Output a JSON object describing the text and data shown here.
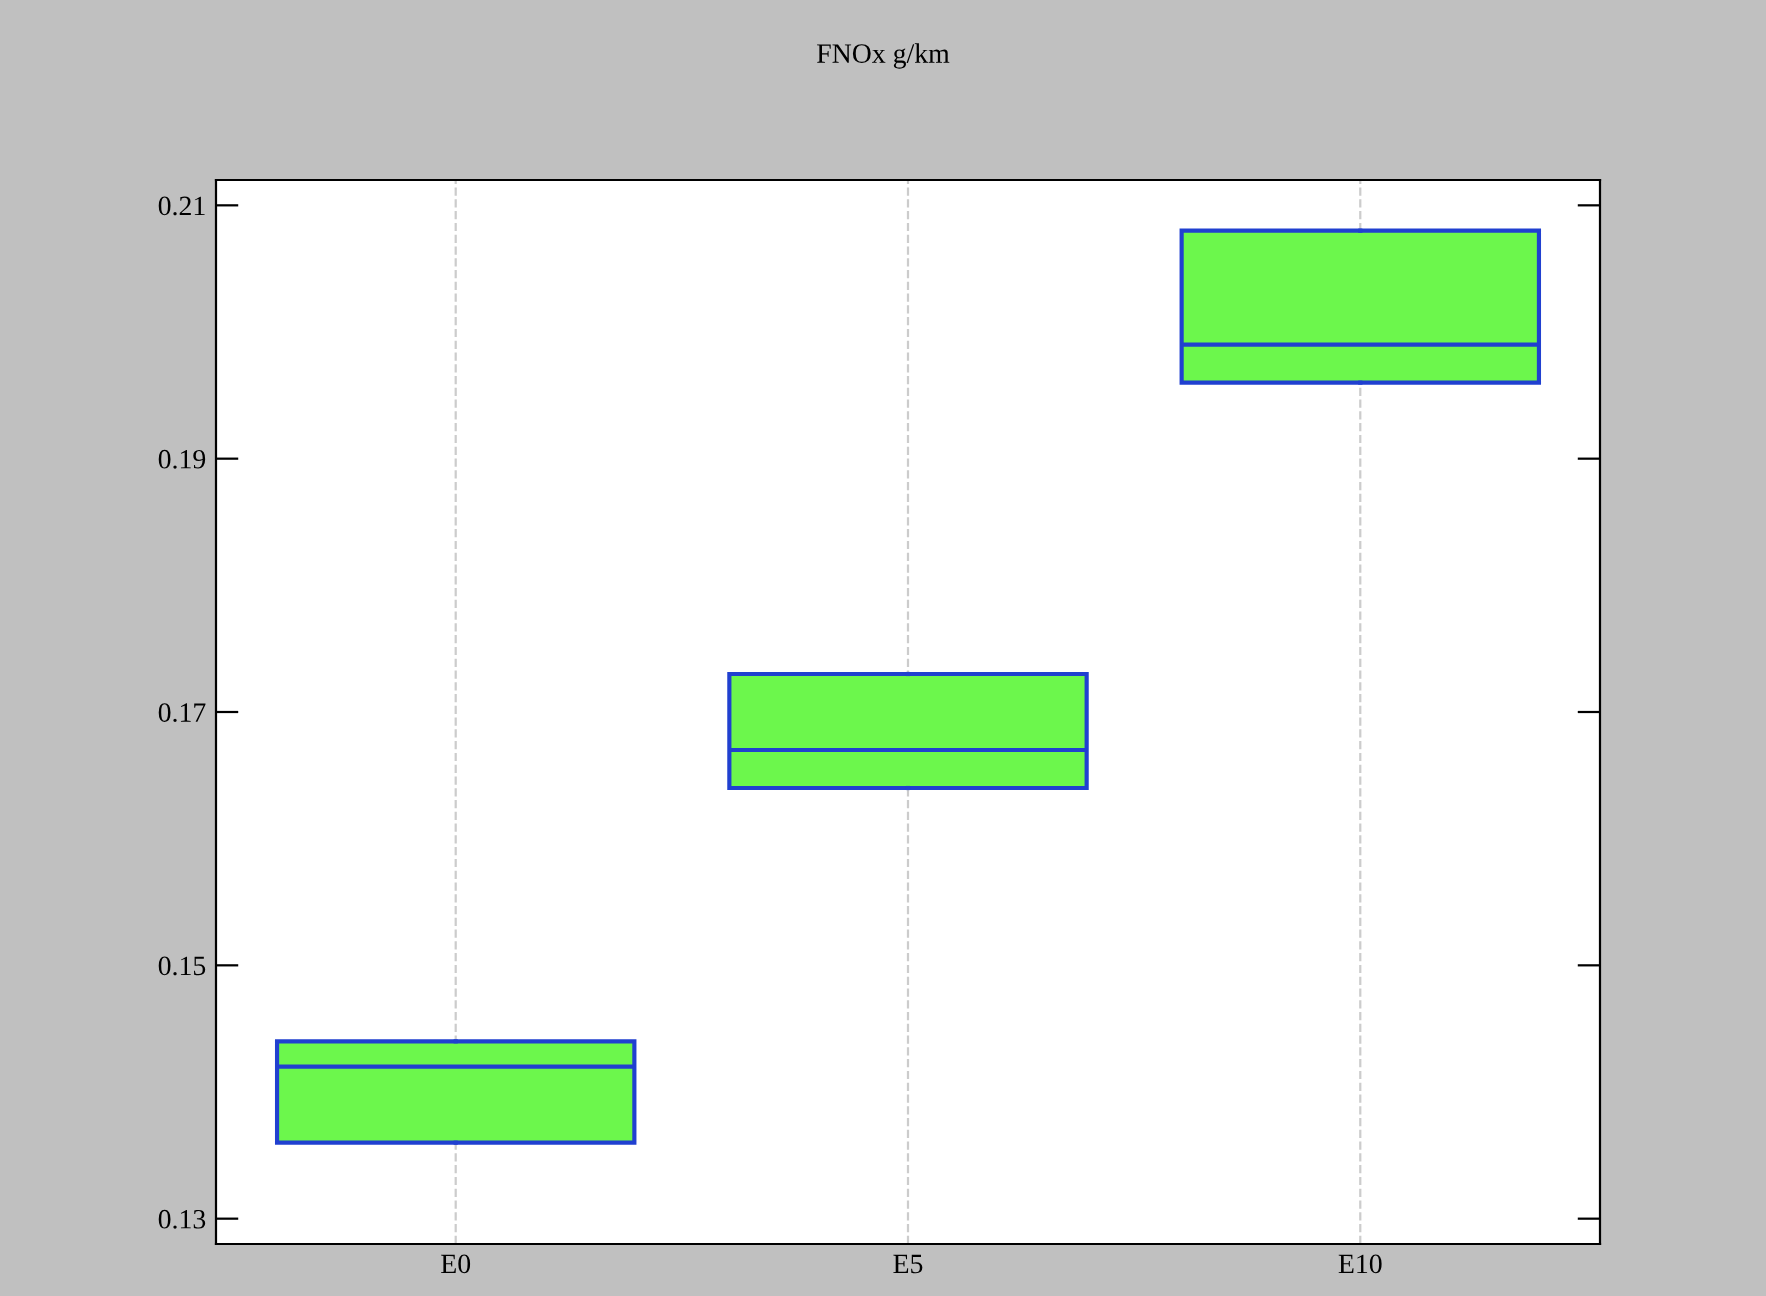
{
  "chart_data": {
    "type": "box",
    "title": "FNOx g/km",
    "categories": [
      "E0",
      "E5",
      "E10"
    ],
    "boxes": [
      {
        "low": 0.136,
        "q1": 0.136,
        "median": 0.142,
        "q3": 0.144,
        "high": 0.144
      },
      {
        "low": 0.164,
        "q1": 0.164,
        "median": 0.167,
        "q3": 0.173,
        "high": 0.173
      },
      {
        "low": 0.196,
        "q1": 0.196,
        "median": 0.199,
        "q3": 0.208,
        "high": 0.208
      }
    ],
    "color": "#6cf74c",
    "ylim": [
      0.128,
      0.212
    ],
    "yticks": [
      0.13,
      0.15,
      0.17,
      0.19,
      0.21
    ],
    "grid": "x"
  }
}
